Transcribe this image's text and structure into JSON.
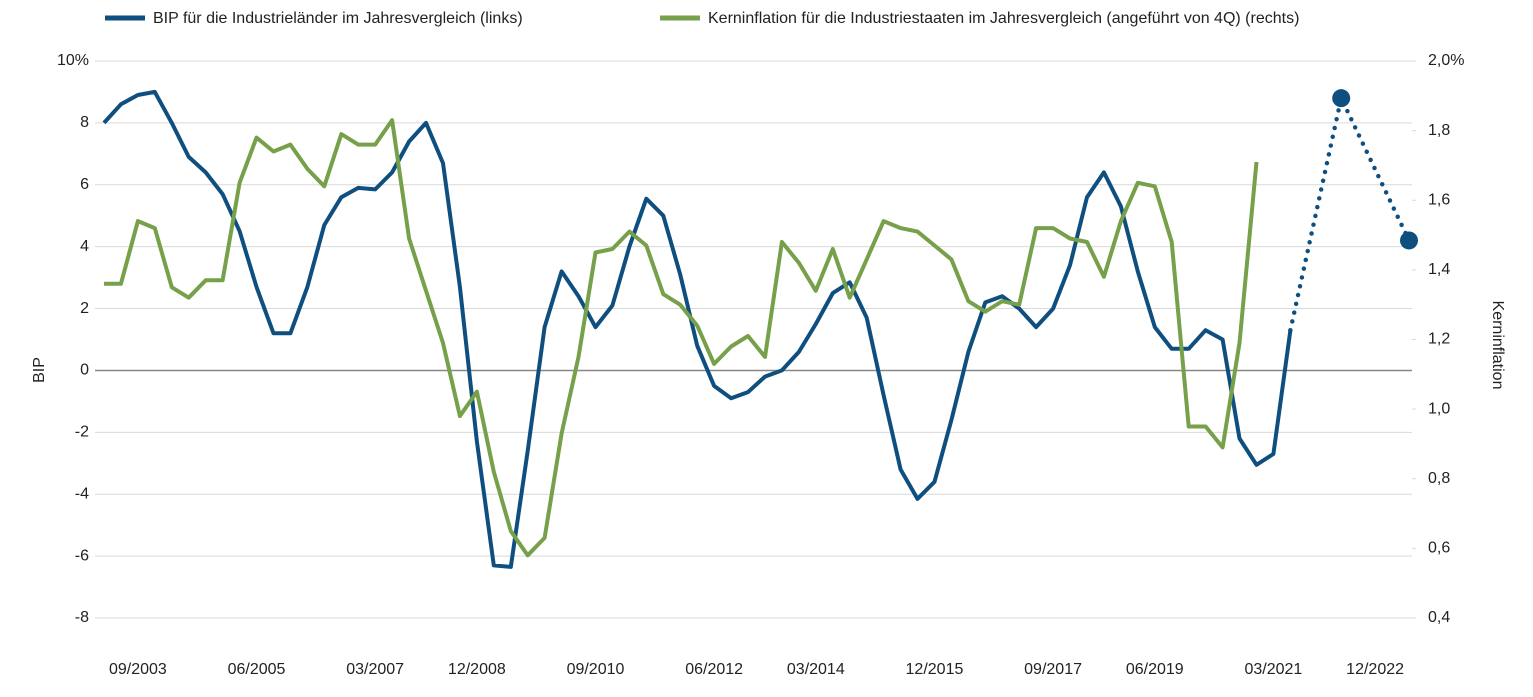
{
  "chart_data": {
    "type": "line",
    "y_label": "BIP",
    "y2_label": "Kerninflation",
    "categories": [
      null,
      null,
      "09/2003",
      null,
      null,
      null,
      null,
      null,
      null,
      "06/2005",
      null,
      null,
      null,
      null,
      null,
      null,
      "03/2007",
      null,
      null,
      null,
      null,
      null,
      "12/2008",
      null,
      null,
      null,
      null,
      null,
      null,
      "09/2010",
      null,
      null,
      null,
      null,
      null,
      null,
      "06/2012",
      null,
      null,
      null,
      null,
      null,
      "03/2014",
      null,
      null,
      null,
      null,
      null,
      null,
      "12/2015",
      null,
      null,
      null,
      null,
      null,
      null,
      "09/2017",
      null,
      null,
      null,
      null,
      null,
      "06/2019",
      null,
      null,
      null,
      null,
      null,
      null,
      "03/2021",
      null,
      null,
      null,
      null,
      null,
      "12/2022",
      null,
      null
    ],
    "series": [
      {
        "name": "BIP für die Industrieländer im Jahresvergleich (links)",
        "color": "#0f4f80",
        "axis": "y",
        "values": [
          8.0,
          8.6,
          8.9,
          9.0,
          8.0,
          6.9,
          6.4,
          5.7,
          4.5,
          2.7,
          1.2,
          1.2,
          2.7,
          4.7,
          5.6,
          5.9,
          5.85,
          6.4,
          7.4,
          8.0,
          6.7,
          2.7,
          -2.3,
          -6.3,
          -6.35,
          -2.6,
          1.4,
          3.2,
          2.4,
          1.4,
          2.1,
          4.0,
          5.55,
          5.0,
          3.1,
          0.8,
          -0.5,
          -0.9,
          -0.7,
          -0.2,
          0.0,
          0.6,
          1.5,
          2.5,
          2.85,
          1.7,
          -0.8,
          -3.2,
          -4.15,
          -3.6,
          -1.6,
          0.6,
          2.2,
          2.4,
          2.0,
          1.4,
          2.0,
          3.4,
          5.6,
          6.4,
          5.3,
          3.2,
          1.4,
          0.7,
          0.7,
          1.3,
          1.0,
          -2.2,
          -3.05,
          -2.7,
          1.3,
          null,
          null,
          null,
          null,
          null,
          null,
          null
        ],
        "projection": [
          null,
          null,
          null,
          null,
          null,
          null,
          null,
          null,
          null,
          null,
          null,
          null,
          null,
          null,
          null,
          null,
          null,
          null,
          null,
          null,
          null,
          null,
          null,
          null,
          null,
          null,
          null,
          null,
          null,
          null,
          null,
          null,
          null,
          null,
          null,
          null,
          null,
          null,
          null,
          null,
          null,
          null,
          null,
          null,
          null,
          null,
          null,
          null,
          null,
          null,
          null,
          null,
          null,
          null,
          null,
          null,
          null,
          null,
          null,
          null,
          null,
          null,
          null,
          null,
          null,
          null,
          null,
          null,
          null,
          null,
          null,
          null,
          null,
          8.8,
          null,
          null,
          null,
          4.2
        ]
      },
      {
        "name": "Kerninflation für die Industriestaaten im Jahresvergleich (angeführt von 4Q) (rechts)",
        "color": "#76a04a",
        "axis": "y2",
        "values": [
          1.36,
          1.36,
          1.54,
          1.52,
          1.35,
          1.32,
          1.37,
          1.37,
          1.65,
          1.78,
          1.74,
          1.76,
          1.69,
          1.64,
          1.79,
          1.76,
          1.76,
          1.83,
          1.49,
          1.34,
          1.19,
          0.98,
          1.05,
          0.82,
          0.65,
          0.58,
          0.63,
          0.93,
          1.15,
          1.45,
          1.46,
          1.51,
          1.47,
          1.33,
          1.3,
          1.24,
          1.13,
          1.18,
          1.21,
          1.15,
          1.48,
          1.42,
          1.34,
          1.46,
          1.32,
          1.43,
          1.54,
          1.52,
          1.51,
          1.47,
          1.43,
          1.31,
          1.28,
          1.31,
          1.3,
          1.52,
          1.52,
          1.49,
          1.48,
          1.38,
          1.54,
          1.65,
          1.64,
          1.48,
          0.95,
          0.95,
          0.89,
          1.19,
          1.71,
          null,
          null,
          null,
          null,
          null,
          null,
          null,
          null,
          null
        ]
      }
    ],
    "ylim": [
      -8,
      10
    ],
    "yticks": [
      -8,
      -6,
      -4,
      -2,
      0,
      2,
      4,
      6,
      8,
      {
        "value": 10,
        "label": "10%"
      }
    ],
    "y2lim": [
      0.4,
      2.0
    ],
    "y2ticks": [
      {
        "value": 0.4,
        "label": "0,4"
      },
      {
        "value": 0.6,
        "label": "0,6"
      },
      {
        "value": 0.8,
        "label": "0,8"
      },
      {
        "value": 1.0,
        "label": "1,0"
      },
      {
        "value": 1.2,
        "label": "1,2"
      },
      {
        "value": 1.4,
        "label": "1,4"
      },
      {
        "value": 1.6,
        "label": "1,6"
      },
      {
        "value": 1.8,
        "label": "1,8"
      },
      {
        "value": 2.0,
        "label": "2,0%"
      }
    ],
    "grid": true
  }
}
